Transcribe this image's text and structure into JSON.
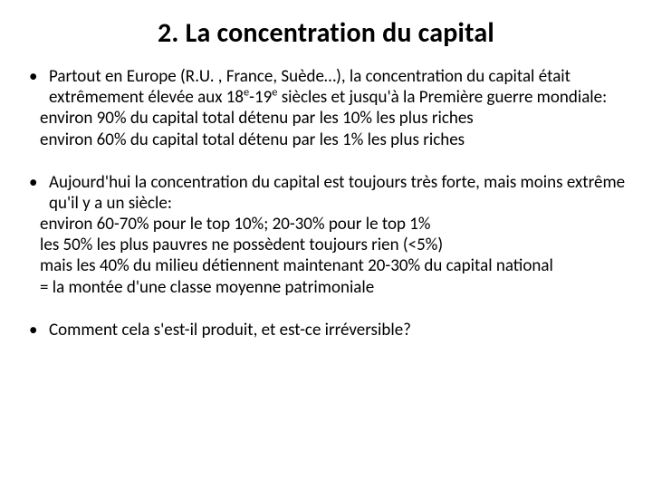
{
  "title": "2. La concentration du capital",
  "b1": {
    "lead_a": "Partout en Europe (R.U. , France, Suède…), la concentration du capital était extrêmement élevée aux 18",
    "sup1": "e",
    "mid": "-19",
    "sup2": "e",
    "lead_b": " siècles et jusqu'à la Première guerre mondiale:",
    "l2": "environ 90% du capital total détenu par les 10% les plus riches",
    "l3": "environ 60% du capital total détenu par les 1% les plus riches"
  },
  "b2": {
    "l1": "Aujourd'hui la concentration du capital est toujours très forte, mais moins extrême qu'il y a un siècle:",
    "l2": "environ 60-70% pour le top 10%; 20-30% pour le top 1%",
    "l3": "les 50% les plus pauvres ne possèdent toujours rien (<5%)",
    "l4": "mais les 40% du milieu détiennent maintenant 20-30% du capital national",
    "l5": " = la montée d'une classe moyenne patrimoniale"
  },
  "b3": {
    "l1": "Comment cela s'est-il produit, et est-ce irréversible?"
  },
  "dot": "•"
}
